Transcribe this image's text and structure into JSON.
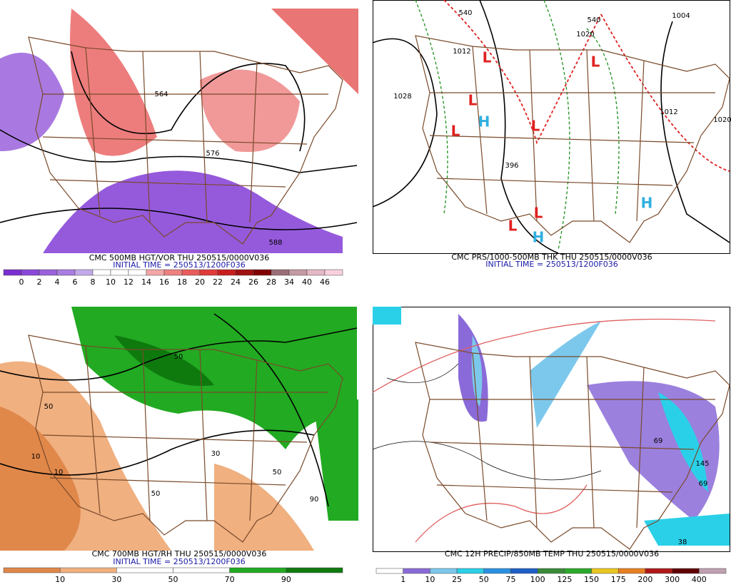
{
  "panels": [
    {
      "caption": "CMC 500MB HGT/VOR THU 250515/0000V036",
      "initial_time": "INITIAL TIME = 250513/1200F036",
      "colorbar": {
        "labels": [
          0,
          2,
          4,
          6,
          8,
          10,
          12,
          14,
          16,
          18,
          20,
          22,
          24,
          26,
          28,
          34,
          40,
          46
        ],
        "colors": [
          "#7a2fd0",
          "#8a48d8",
          "#9a62dc",
          "#a97de0",
          "#c2aaea",
          "#ffffff",
          "#ffffff",
          "#ffffff",
          "#f4a6a6",
          "#ee8080",
          "#e85c5c",
          "#e03a3a",
          "#c81e1e",
          "#a01010",
          "#800000",
          "#9a6e78",
          "#c49aa4",
          "#e4b8c4",
          "#f8d0dc"
        ]
      },
      "map_labels": [
        "564",
        "576",
        "588"
      ]
    },
    {
      "caption": "CMC PRS/1000-500MB THK THU 250515/0000V036",
      "initial_time": "INITIAL TIME = 250513/1200F036",
      "map_labels": [
        "1028",
        "1020",
        "1012",
        "1004",
        "1020",
        "1012",
        "540",
        "540",
        "396"
      ],
      "pressure_centers": [
        "L",
        "L",
        "L",
        "L",
        "L",
        "L",
        "L",
        "H",
        "H",
        "H"
      ]
    },
    {
      "caption": "CMC 700MB HGT/RH THU 250515/0000V036",
      "initial_time": "INITIAL TIME = 250513/1200F036",
      "colorbar": {
        "labels": [
          10,
          30,
          50,
          70,
          90
        ],
        "colors": [
          "#e0884a",
          "#f0b080",
          "#ffffff",
          "#ffffff",
          "#22aa22",
          "#0e7a0e"
        ]
      },
      "map_labels": [
        "50",
        "10",
        "10",
        "30",
        "50",
        "90",
        "50",
        "50"
      ]
    },
    {
      "caption": "CMC 12H PRECIP/850MB TEMP THU 250515/0000V036",
      "colorbar": {
        "labels": [
          1,
          10,
          25,
          50,
          75,
          100,
          125,
          150,
          175,
          200,
          300,
          400
        ],
        "colors": [
          "#ffffff",
          "#8a6ad8",
          "#7cc8ec",
          "#2ad0e8",
          "#2a90e0",
          "#1e5ec8",
          "#3a8a3a",
          "#2aa82a",
          "#e8c820",
          "#e88020",
          "#b01818",
          "#600000",
          "#c0a0b0"
        ]
      },
      "map_labels": [
        "69",
        "145",
        "69",
        "38"
      ]
    }
  ]
}
